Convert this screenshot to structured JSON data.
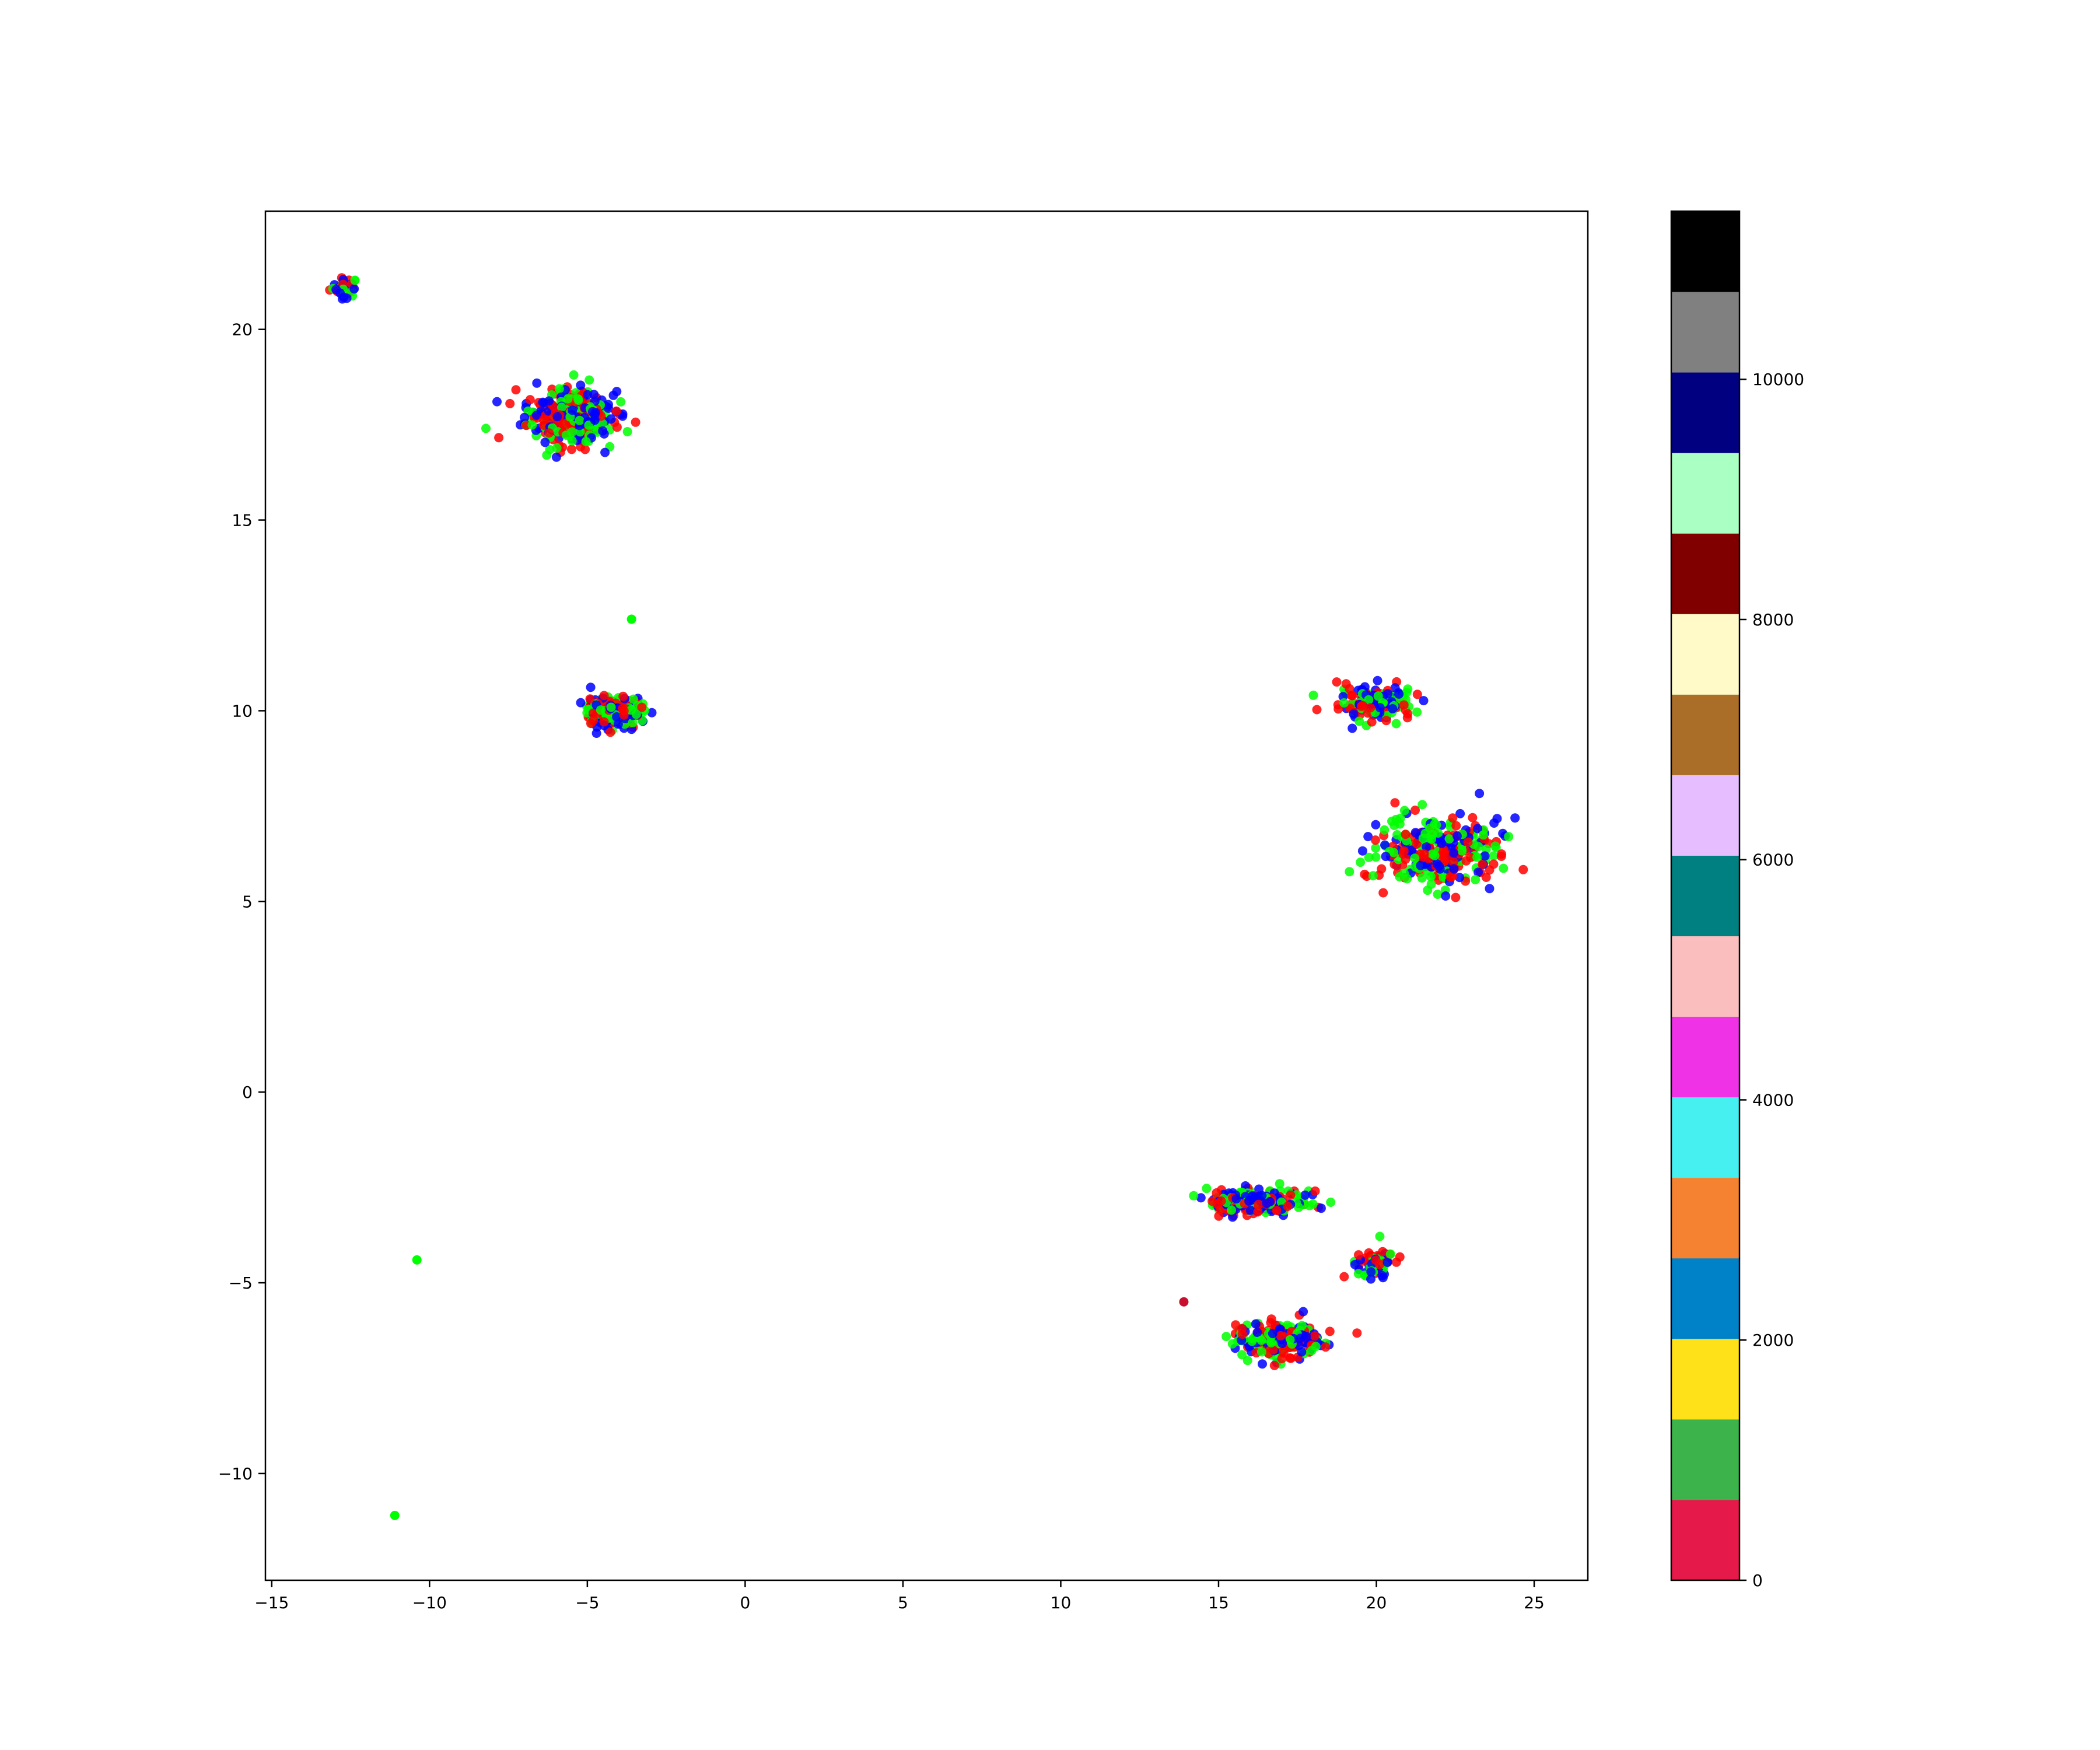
{
  "chart_data": {
    "type": "scatter",
    "title": "",
    "xlabel": "",
    "ylabel": "",
    "xlim": [
      -15.2,
      26.7
    ],
    "ylim": [
      -12.8,
      23.1
    ],
    "xticks": [
      -15,
      -10,
      -5,
      0,
      5,
      10,
      15,
      20,
      25
    ],
    "xtick_labels": [
      "−15",
      "−10",
      "−5",
      "0",
      "5",
      "10",
      "15",
      "20",
      "25"
    ],
    "yticks": [
      -10,
      -5,
      0,
      5,
      10,
      15,
      20
    ],
    "ytick_labels": [
      "−10",
      "−5",
      "0",
      "5",
      "10",
      "15",
      "20"
    ],
    "grid": false,
    "point_colors": [
      "#ff0000",
      "#0000ff",
      "#00ff00"
    ],
    "clusters": [
      {
        "center": [
          -12.7,
          21.1
        ],
        "spread": [
          0.45,
          0.25
        ],
        "count": 45
      },
      {
        "center": [
          -5.6,
          17.7
        ],
        "spread": [
          1.3,
          0.7
        ],
        "count": 420
      },
      {
        "center": [
          -4.2,
          10.0
        ],
        "spread": [
          0.9,
          0.35
        ],
        "count": 300
      },
      {
        "center": [
          20.0,
          10.2
        ],
        "spread": [
          1.2,
          0.45
        ],
        "count": 160
      },
      {
        "center": [
          22.0,
          6.3
        ],
        "spread": [
          1.9,
          0.9
        ],
        "count": 320
      },
      {
        "center": [
          16.2,
          -2.9
        ],
        "spread": [
          1.5,
          0.35
        ],
        "count": 260
      },
      {
        "center": [
          16.9,
          -6.5
        ],
        "spread": [
          1.3,
          0.45
        ],
        "count": 260
      },
      {
        "center": [
          20.0,
          -4.5
        ],
        "spread": [
          0.6,
          0.4
        ],
        "count": 80
      }
    ],
    "outliers": [
      {
        "x": -10.4,
        "y": -4.4,
        "color": "#00ff00"
      },
      {
        "x": -11.1,
        "y": -11.1,
        "color": "#00ff00"
      },
      {
        "x": -3.6,
        "y": 12.4,
        "color": "#00ff00"
      },
      {
        "x": 13.9,
        "y": -5.5,
        "color": "#c8102e"
      }
    ],
    "colorbar": {
      "vmin": 0,
      "vmax": 11400,
      "colors": [
        "#e6194b",
        "#3cb44b",
        "#ffe119",
        "#0082c8",
        "#f58231",
        "#46f0f0",
        "#f032e6",
        "#fabebe",
        "#008080",
        "#e6beff",
        "#aa6e28",
        "#fffac8",
        "#800000",
        "#aaffc3",
        "#000080",
        "#808080",
        "#000000"
      ],
      "ticks": [
        0,
        2000,
        4000,
        6000,
        8000,
        10000
      ],
      "tick_labels": [
        "0",
        "2000",
        "4000",
        "6000",
        "8000",
        "10000"
      ]
    }
  }
}
